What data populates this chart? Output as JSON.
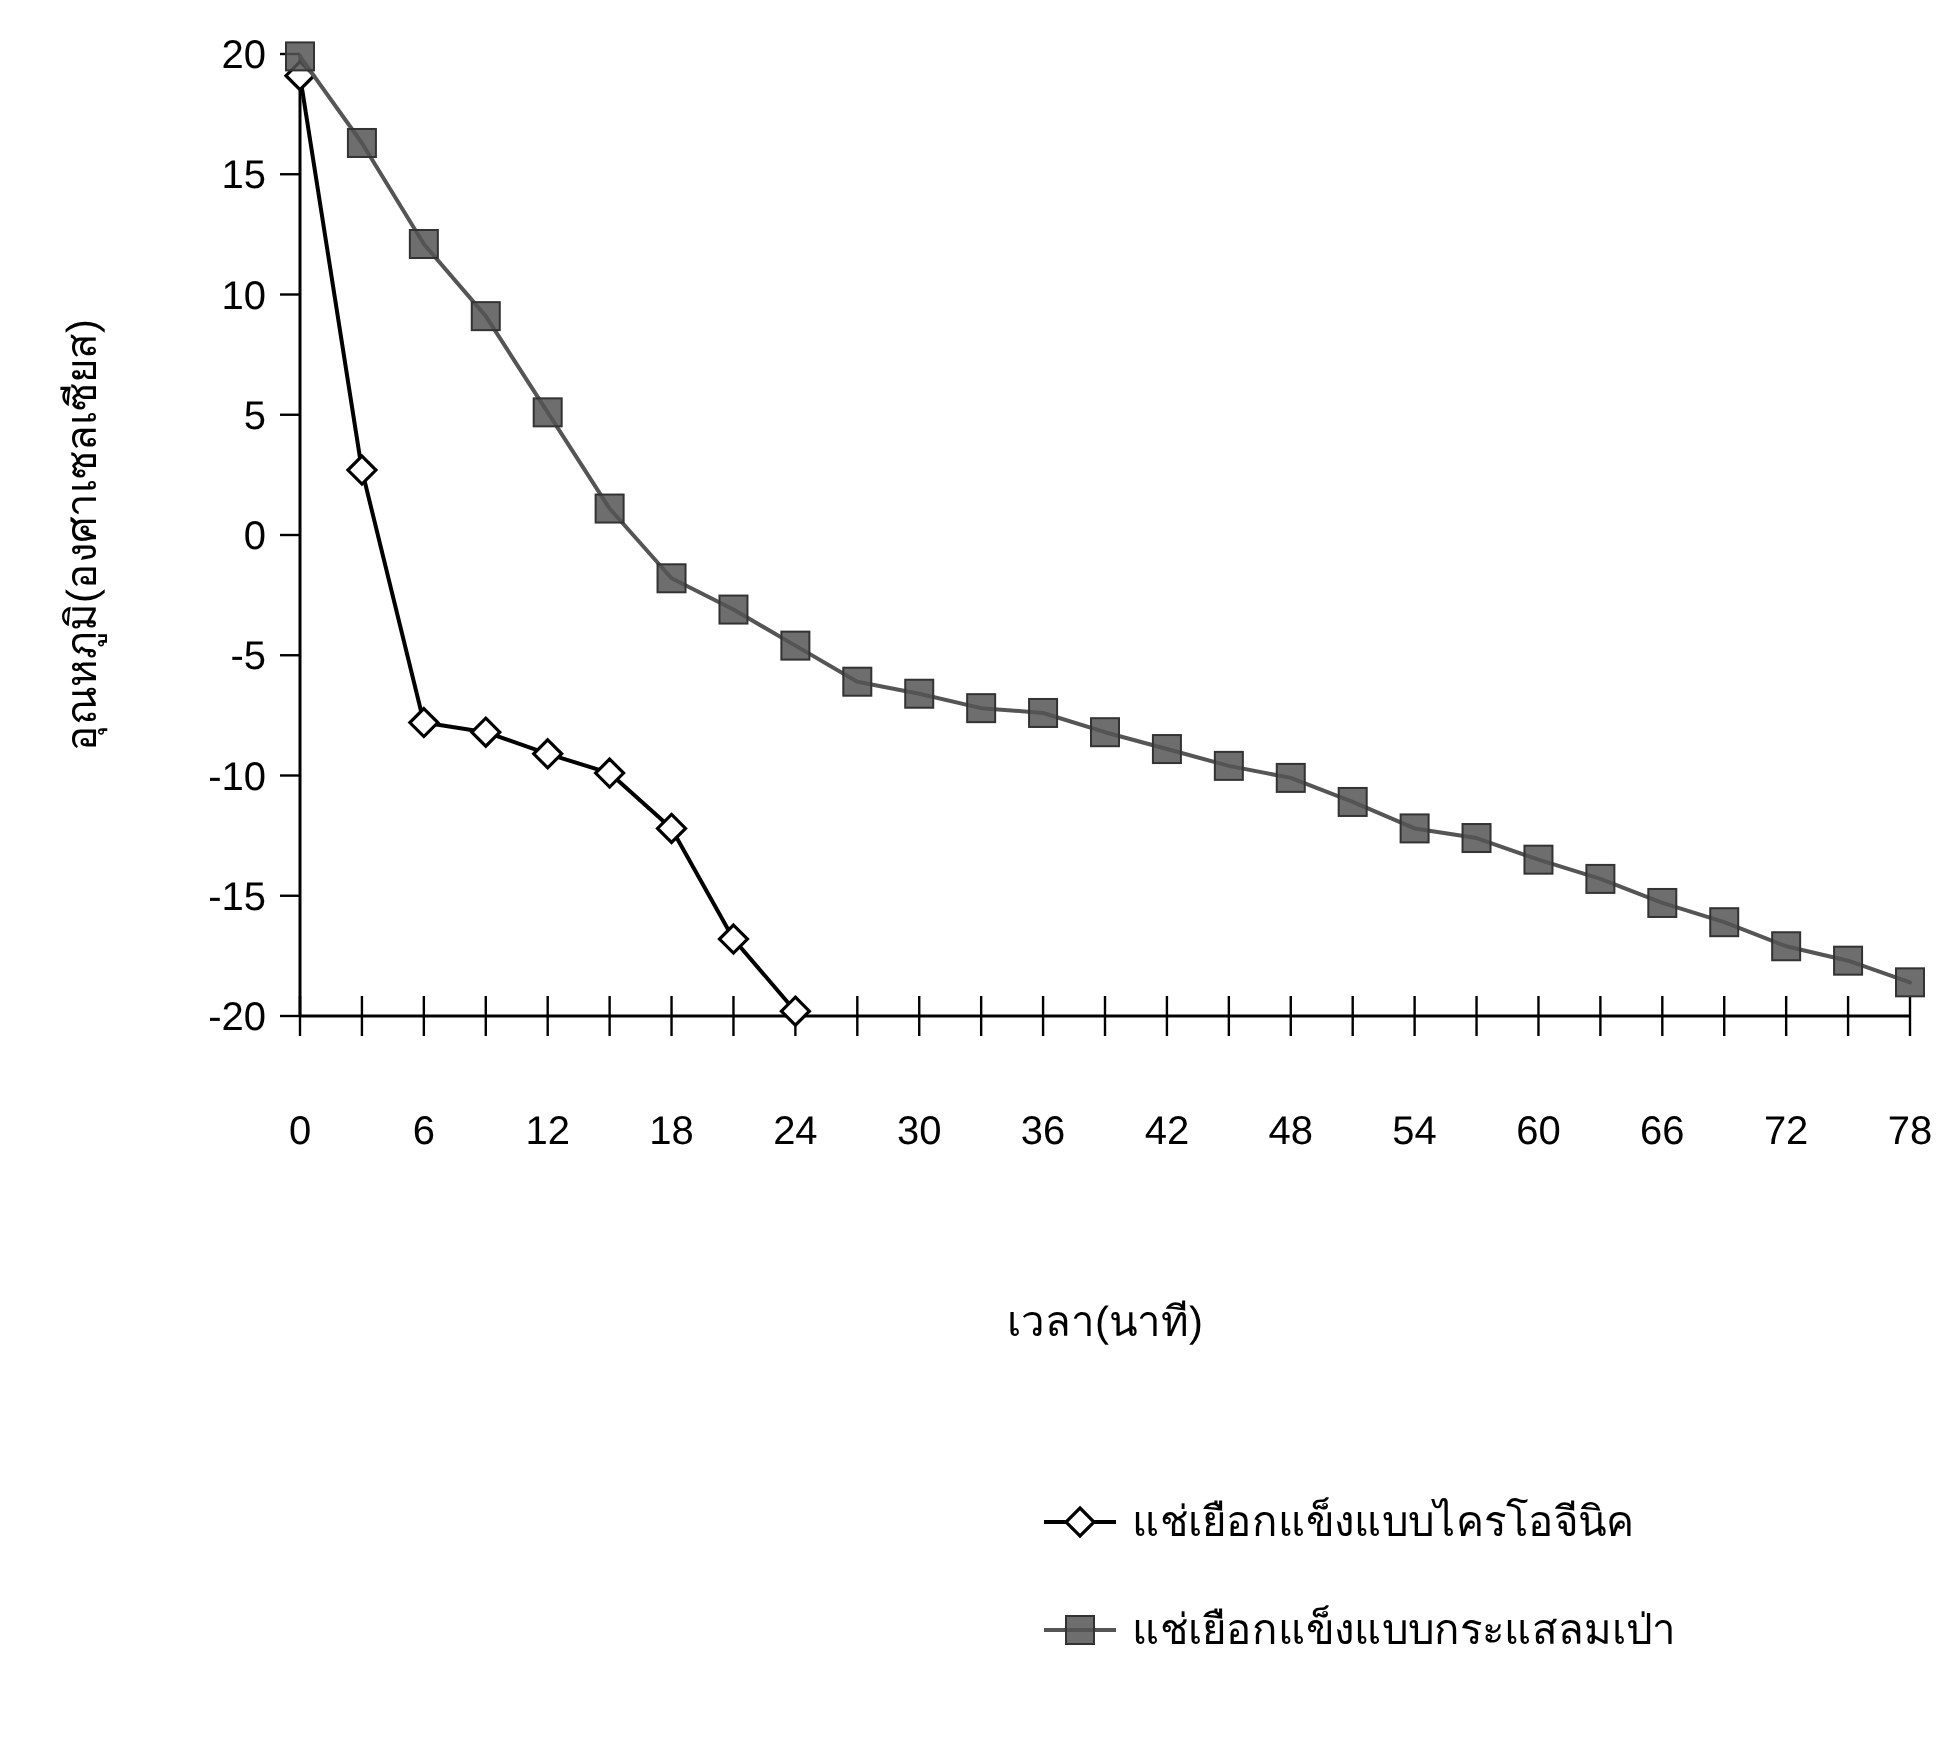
{
  "chart_data": {
    "type": "line",
    "xlabel": "เวลา(นาที)",
    "ylabel": "อุณหภูมิ(องศาเซลเซียส)",
    "x": [
      0,
      3,
      6,
      9,
      12,
      15,
      18,
      21,
      24,
      27,
      30,
      33,
      36,
      39,
      42,
      45,
      48,
      51,
      54,
      57,
      60,
      63,
      66,
      69,
      72,
      75,
      78
    ],
    "xlim": [
      0,
      78
    ],
    "xticks": [
      0,
      {
        "value": 3,
        "label": null
      },
      6,
      {
        "value": 9,
        "label": null
      },
      12,
      {
        "value": 15,
        "label": null
      },
      18,
      {
        "value": 21,
        "label": null
      },
      24,
      {
        "value": 27,
        "label": null
      },
      30,
      {
        "value": 33,
        "label": null
      },
      36,
      {
        "value": 39,
        "label": null
      },
      42,
      {
        "value": 45,
        "label": null
      },
      48,
      {
        "value": 51,
        "label": null
      },
      54,
      {
        "value": 57,
        "label": null
      },
      60,
      {
        "value": 63,
        "label": null
      },
      66,
      {
        "value": 69,
        "label": null
      },
      72,
      {
        "value": 75,
        "label": null
      },
      78
    ],
    "ylim": [
      -20,
      20
    ],
    "yticks": [
      -20,
      -15,
      -10,
      -5,
      0,
      5,
      10,
      15,
      20
    ],
    "grid": false,
    "legend": "bottom",
    "series": [
      {
        "name": "แช่เยือกแข็งแบบไครโอจีนิค",
        "color": "#000000",
        "marker": "diamond",
        "values": [
          19.1,
          2.7,
          -7.8,
          -8.2,
          -9.1,
          -9.9,
          -12.2,
          -16.8,
          -19.8,
          null,
          null,
          null,
          null,
          null,
          null,
          null,
          null,
          null,
          null,
          null,
          null,
          null,
          null,
          null,
          null,
          null,
          null
        ]
      },
      {
        "name": "แช่เยือกแข็งแบบกระแสลมเป่า",
        "color": "#555555",
        "marker": "square",
        "values": [
          19.9,
          16.3,
          12.1,
          9.1,
          5.1,
          1.1,
          -1.8,
          -3.1,
          -4.6,
          -6.1,
          -6.6,
          -7.2,
          -7.4,
          -8.2,
          -8.9,
          -9.6,
          -10.1,
          -11.1,
          -12.2,
          -12.6,
          -13.5,
          -14.3,
          -15.3,
          -16.1,
          -17.1,
          -17.7,
          -18.6
        ]
      }
    ]
  }
}
